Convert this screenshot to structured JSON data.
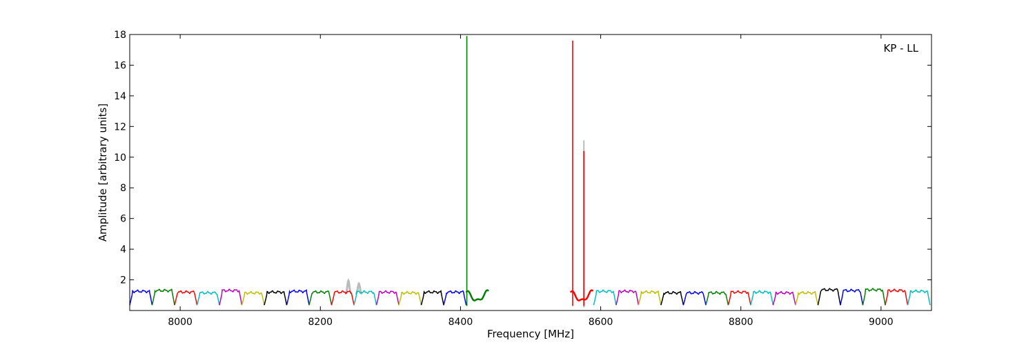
{
  "chart_data": {
    "type": "line",
    "title": "",
    "annotation": "KP - LL",
    "xlabel": "Frequency [MHz]",
    "ylabel": "Amplitude [arbitrary units]",
    "xlim": [
      7928,
      9072
    ],
    "ylim": [
      0,
      18
    ],
    "xticks": [
      8000,
      8200,
      8400,
      8600,
      8800,
      9000
    ],
    "yticks": [
      2,
      4,
      6,
      8,
      10,
      12,
      14,
      16,
      18
    ],
    "grid": false,
    "legend": "none",
    "channel_width_mhz": 32,
    "colors": [
      "#0000ff",
      "#008000",
      "#ff0000",
      "#00bfbf",
      "#bf00bf",
      "#bfbf00",
      "#000000"
    ],
    "channels": [
      {
        "start": 7928,
        "color": "#0000ff",
        "level": 1.25
      },
      {
        "start": 7960,
        "color": "#008000",
        "level": 1.3
      },
      {
        "start": 7992,
        "color": "#ff0000",
        "level": 1.2
      },
      {
        "start": 8024,
        "color": "#00bfbf",
        "level": 1.15
      },
      {
        "start": 8056,
        "color": "#bf00bf",
        "level": 1.3
      },
      {
        "start": 8088,
        "color": "#bfbf00",
        "level": 1.15
      },
      {
        "start": 8120,
        "color": "#000000",
        "level": 1.2
      },
      {
        "start": 8152,
        "color": "#0000ff",
        "level": 1.25
      },
      {
        "start": 8184,
        "color": "#008000",
        "level": 1.2
      },
      {
        "start": 8216,
        "color": "#ff0000",
        "level": 1.2
      },
      {
        "start": 8248,
        "color": "#00bfbf",
        "level": 1.2
      },
      {
        "start": 8280,
        "color": "#bf00bf",
        "level": 1.2
      },
      {
        "start": 8312,
        "color": "#bfbf00",
        "level": 1.15
      },
      {
        "start": 8344,
        "color": "#000000",
        "level": 1.2
      },
      {
        "start": 8376,
        "color": "#0000ff",
        "level": 1.2
      },
      {
        "start": 8408,
        "color": "#008000",
        "level": 1.2,
        "dip": true
      },
      {
        "start": 8557,
        "color": "#ff0000",
        "level": 1.2,
        "dip": true
      },
      {
        "start": 8590,
        "color": "#00bfbf",
        "level": 1.25
      },
      {
        "start": 8622,
        "color": "#bf00bf",
        "level": 1.25
      },
      {
        "start": 8654,
        "color": "#bfbf00",
        "level": 1.2
      },
      {
        "start": 8686,
        "color": "#000000",
        "level": 1.15
      },
      {
        "start": 8718,
        "color": "#0000ff",
        "level": 1.15
      },
      {
        "start": 8750,
        "color": "#008000",
        "level": 1.15
      },
      {
        "start": 8782,
        "color": "#ff0000",
        "level": 1.2
      },
      {
        "start": 8814,
        "color": "#00bfbf",
        "level": 1.2
      },
      {
        "start": 8846,
        "color": "#bf00bf",
        "level": 1.15
      },
      {
        "start": 8878,
        "color": "#bfbf00",
        "level": 1.15
      },
      {
        "start": 8910,
        "color": "#000000",
        "level": 1.35
      },
      {
        "start": 8942,
        "color": "#0000ff",
        "level": 1.3
      },
      {
        "start": 8974,
        "color": "#008000",
        "level": 1.35
      },
      {
        "start": 9006,
        "color": "#ff0000",
        "level": 1.3
      },
      {
        "start": 9038,
        "color": "#00bfbf",
        "level": 1.25
      }
    ],
    "spikes": [
      {
        "x": 8409,
        "y": 17.9,
        "color": "#008000"
      },
      {
        "x": 8560,
        "y": 17.6,
        "color": "#ff0000"
      },
      {
        "x": 8576,
        "y": 10.4,
        "color": "#ff0000"
      }
    ],
    "gray_trace": [
      {
        "x": 8240,
        "y": 1.95
      },
      {
        "x": 8255,
        "y": 1.75
      },
      {
        "x": 8576,
        "y": 11.1
      }
    ]
  }
}
